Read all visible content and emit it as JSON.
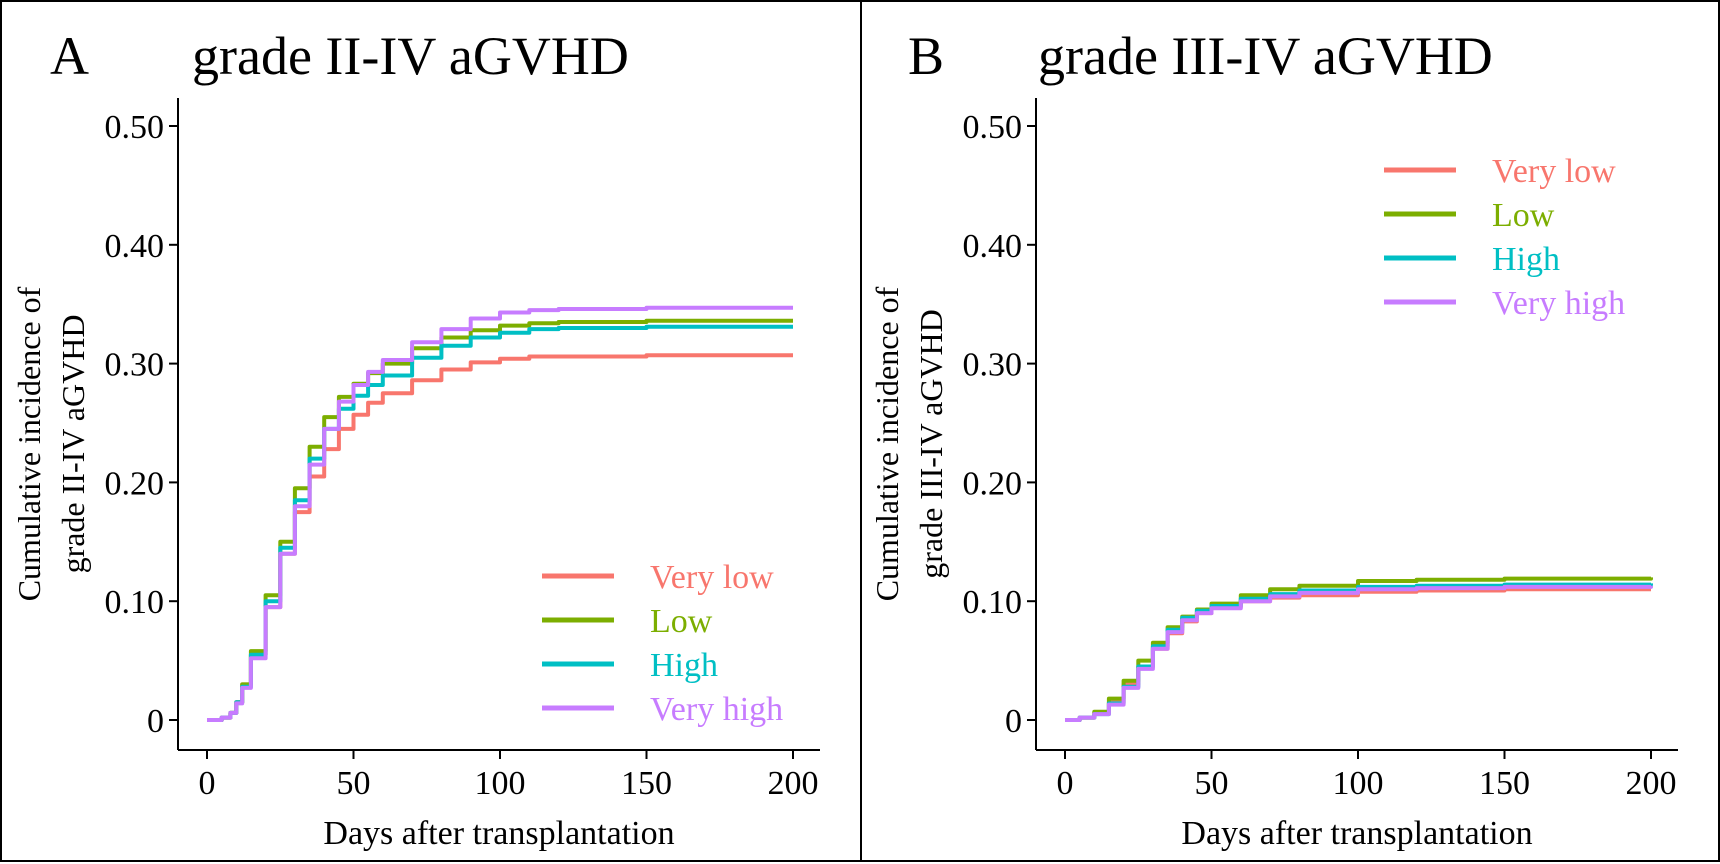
{
  "figure": {
    "type": "two-panel cumulative incidence figure"
  },
  "chart_data": [
    {
      "type": "line",
      "panel_letter": "A",
      "title": "grade II-IV aGVHD",
      "xlabel": "Days after transplantation",
      "ylabel_lines": [
        "Cumulative incidence of",
        "grade II-IV aGVHD"
      ],
      "xlim": [
        0,
        200
      ],
      "ylim": [
        0,
        0.5
      ],
      "xticks": [
        0,
        50,
        100,
        150,
        200
      ],
      "xtick_labels": [
        "0",
        "50",
        "100",
        "150",
        "200"
      ],
      "yticks": [
        0,
        0.1,
        0.2,
        0.3,
        0.4,
        0.5
      ],
      "ytick_labels": [
        "0",
        "0.10",
        "0.20",
        "0.30",
        "0.40",
        "0.50"
      ],
      "grid": false,
      "legend_position": "bottom-right",
      "series": [
        {
          "name": "Very low",
          "color": "#F8766D",
          "x": [
            0,
            5,
            8,
            10,
            12,
            15,
            20,
            25,
            30,
            35,
            40,
            45,
            50,
            55,
            60,
            70,
            80,
            90,
            100,
            110,
            120,
            150,
            200
          ],
          "y": [
            0,
            0.002,
            0.006,
            0.015,
            0.03,
            0.055,
            0.095,
            0.14,
            0.175,
            0.205,
            0.228,
            0.245,
            0.257,
            0.267,
            0.275,
            0.286,
            0.295,
            0.301,
            0.304,
            0.306,
            0.306,
            0.307,
            0.307
          ]
        },
        {
          "name": "Low",
          "color": "#7CAE00",
          "x": [
            0,
            5,
            8,
            10,
            12,
            15,
            20,
            25,
            30,
            35,
            40,
            45,
            50,
            55,
            60,
            70,
            80,
            90,
            100,
            110,
            120,
            150,
            200
          ],
          "y": [
            0,
            0.002,
            0.006,
            0.015,
            0.03,
            0.058,
            0.105,
            0.15,
            0.195,
            0.23,
            0.255,
            0.272,
            0.283,
            0.292,
            0.3,
            0.313,
            0.322,
            0.328,
            0.332,
            0.334,
            0.335,
            0.336,
            0.336
          ]
        },
        {
          "name": "High",
          "color": "#00BFC4",
          "x": [
            0,
            5,
            8,
            10,
            12,
            15,
            20,
            25,
            30,
            35,
            40,
            45,
            50,
            55,
            60,
            70,
            80,
            90,
            100,
            110,
            120,
            150,
            200
          ],
          "y": [
            0,
            0.002,
            0.006,
            0.015,
            0.028,
            0.055,
            0.1,
            0.145,
            0.185,
            0.22,
            0.245,
            0.262,
            0.273,
            0.282,
            0.29,
            0.305,
            0.315,
            0.322,
            0.326,
            0.329,
            0.33,
            0.331,
            0.331
          ]
        },
        {
          "name": "Very high",
          "color": "#C77CFF",
          "x": [
            0,
            5,
            8,
            10,
            12,
            15,
            20,
            25,
            30,
            35,
            40,
            45,
            50,
            55,
            60,
            70,
            80,
            90,
            100,
            110,
            120,
            150,
            200
          ],
          "y": [
            0,
            0.002,
            0.006,
            0.014,
            0.027,
            0.052,
            0.095,
            0.14,
            0.18,
            0.215,
            0.245,
            0.268,
            0.282,
            0.293,
            0.303,
            0.318,
            0.329,
            0.338,
            0.343,
            0.345,
            0.346,
            0.347,
            0.347
          ]
        }
      ]
    },
    {
      "type": "line",
      "panel_letter": "B",
      "title": "grade III-IV aGVHD",
      "xlabel": "Days after transplantation",
      "ylabel_lines": [
        "Cumulative incidence of",
        "grade III-IV aGVHD"
      ],
      "xlim": [
        0,
        200
      ],
      "ylim": [
        0,
        0.5
      ],
      "xticks": [
        0,
        50,
        100,
        150,
        200
      ],
      "xtick_labels": [
        "0",
        "50",
        "100",
        "150",
        "200"
      ],
      "yticks": [
        0,
        0.1,
        0.2,
        0.3,
        0.4,
        0.5
      ],
      "ytick_labels": [
        "0",
        "0.10",
        "0.20",
        "0.30",
        "0.40",
        "0.50"
      ],
      "grid": false,
      "legend_position": "top-right",
      "series": [
        {
          "name": "Very low",
          "color": "#F8766D",
          "x": [
            0,
            5,
            10,
            15,
            20,
            25,
            30,
            35,
            40,
            45,
            50,
            60,
            70,
            80,
            100,
            120,
            150,
            200
          ],
          "y": [
            0,
            0.002,
            0.006,
            0.015,
            0.03,
            0.045,
            0.06,
            0.073,
            0.083,
            0.09,
            0.095,
            0.1,
            0.103,
            0.105,
            0.108,
            0.109,
            0.11,
            0.11
          ]
        },
        {
          "name": "Low",
          "color": "#7CAE00",
          "x": [
            0,
            5,
            10,
            15,
            20,
            25,
            30,
            35,
            40,
            45,
            50,
            60,
            70,
            80,
            100,
            120,
            150,
            200
          ],
          "y": [
            0,
            0.002,
            0.007,
            0.018,
            0.033,
            0.05,
            0.065,
            0.078,
            0.087,
            0.093,
            0.098,
            0.105,
            0.11,
            0.113,
            0.117,
            0.118,
            0.119,
            0.12
          ]
        },
        {
          "name": "High",
          "color": "#00BFC4",
          "x": [
            0,
            5,
            10,
            15,
            20,
            25,
            30,
            35,
            40,
            45,
            50,
            60,
            70,
            80,
            100,
            120,
            150,
            200
          ],
          "y": [
            0,
            0.002,
            0.005,
            0.014,
            0.028,
            0.045,
            0.062,
            0.076,
            0.086,
            0.092,
            0.096,
            0.102,
            0.106,
            0.109,
            0.112,
            0.113,
            0.114,
            0.115
          ]
        },
        {
          "name": "Very high",
          "color": "#C77CFF",
          "x": [
            0,
            5,
            10,
            15,
            20,
            25,
            30,
            35,
            40,
            45,
            50,
            60,
            70,
            80,
            100,
            120,
            150,
            200
          ],
          "y": [
            0,
            0.002,
            0.005,
            0.013,
            0.027,
            0.043,
            0.06,
            0.074,
            0.084,
            0.09,
            0.094,
            0.1,
            0.104,
            0.107,
            0.11,
            0.111,
            0.112,
            0.113
          ]
        }
      ]
    }
  ]
}
